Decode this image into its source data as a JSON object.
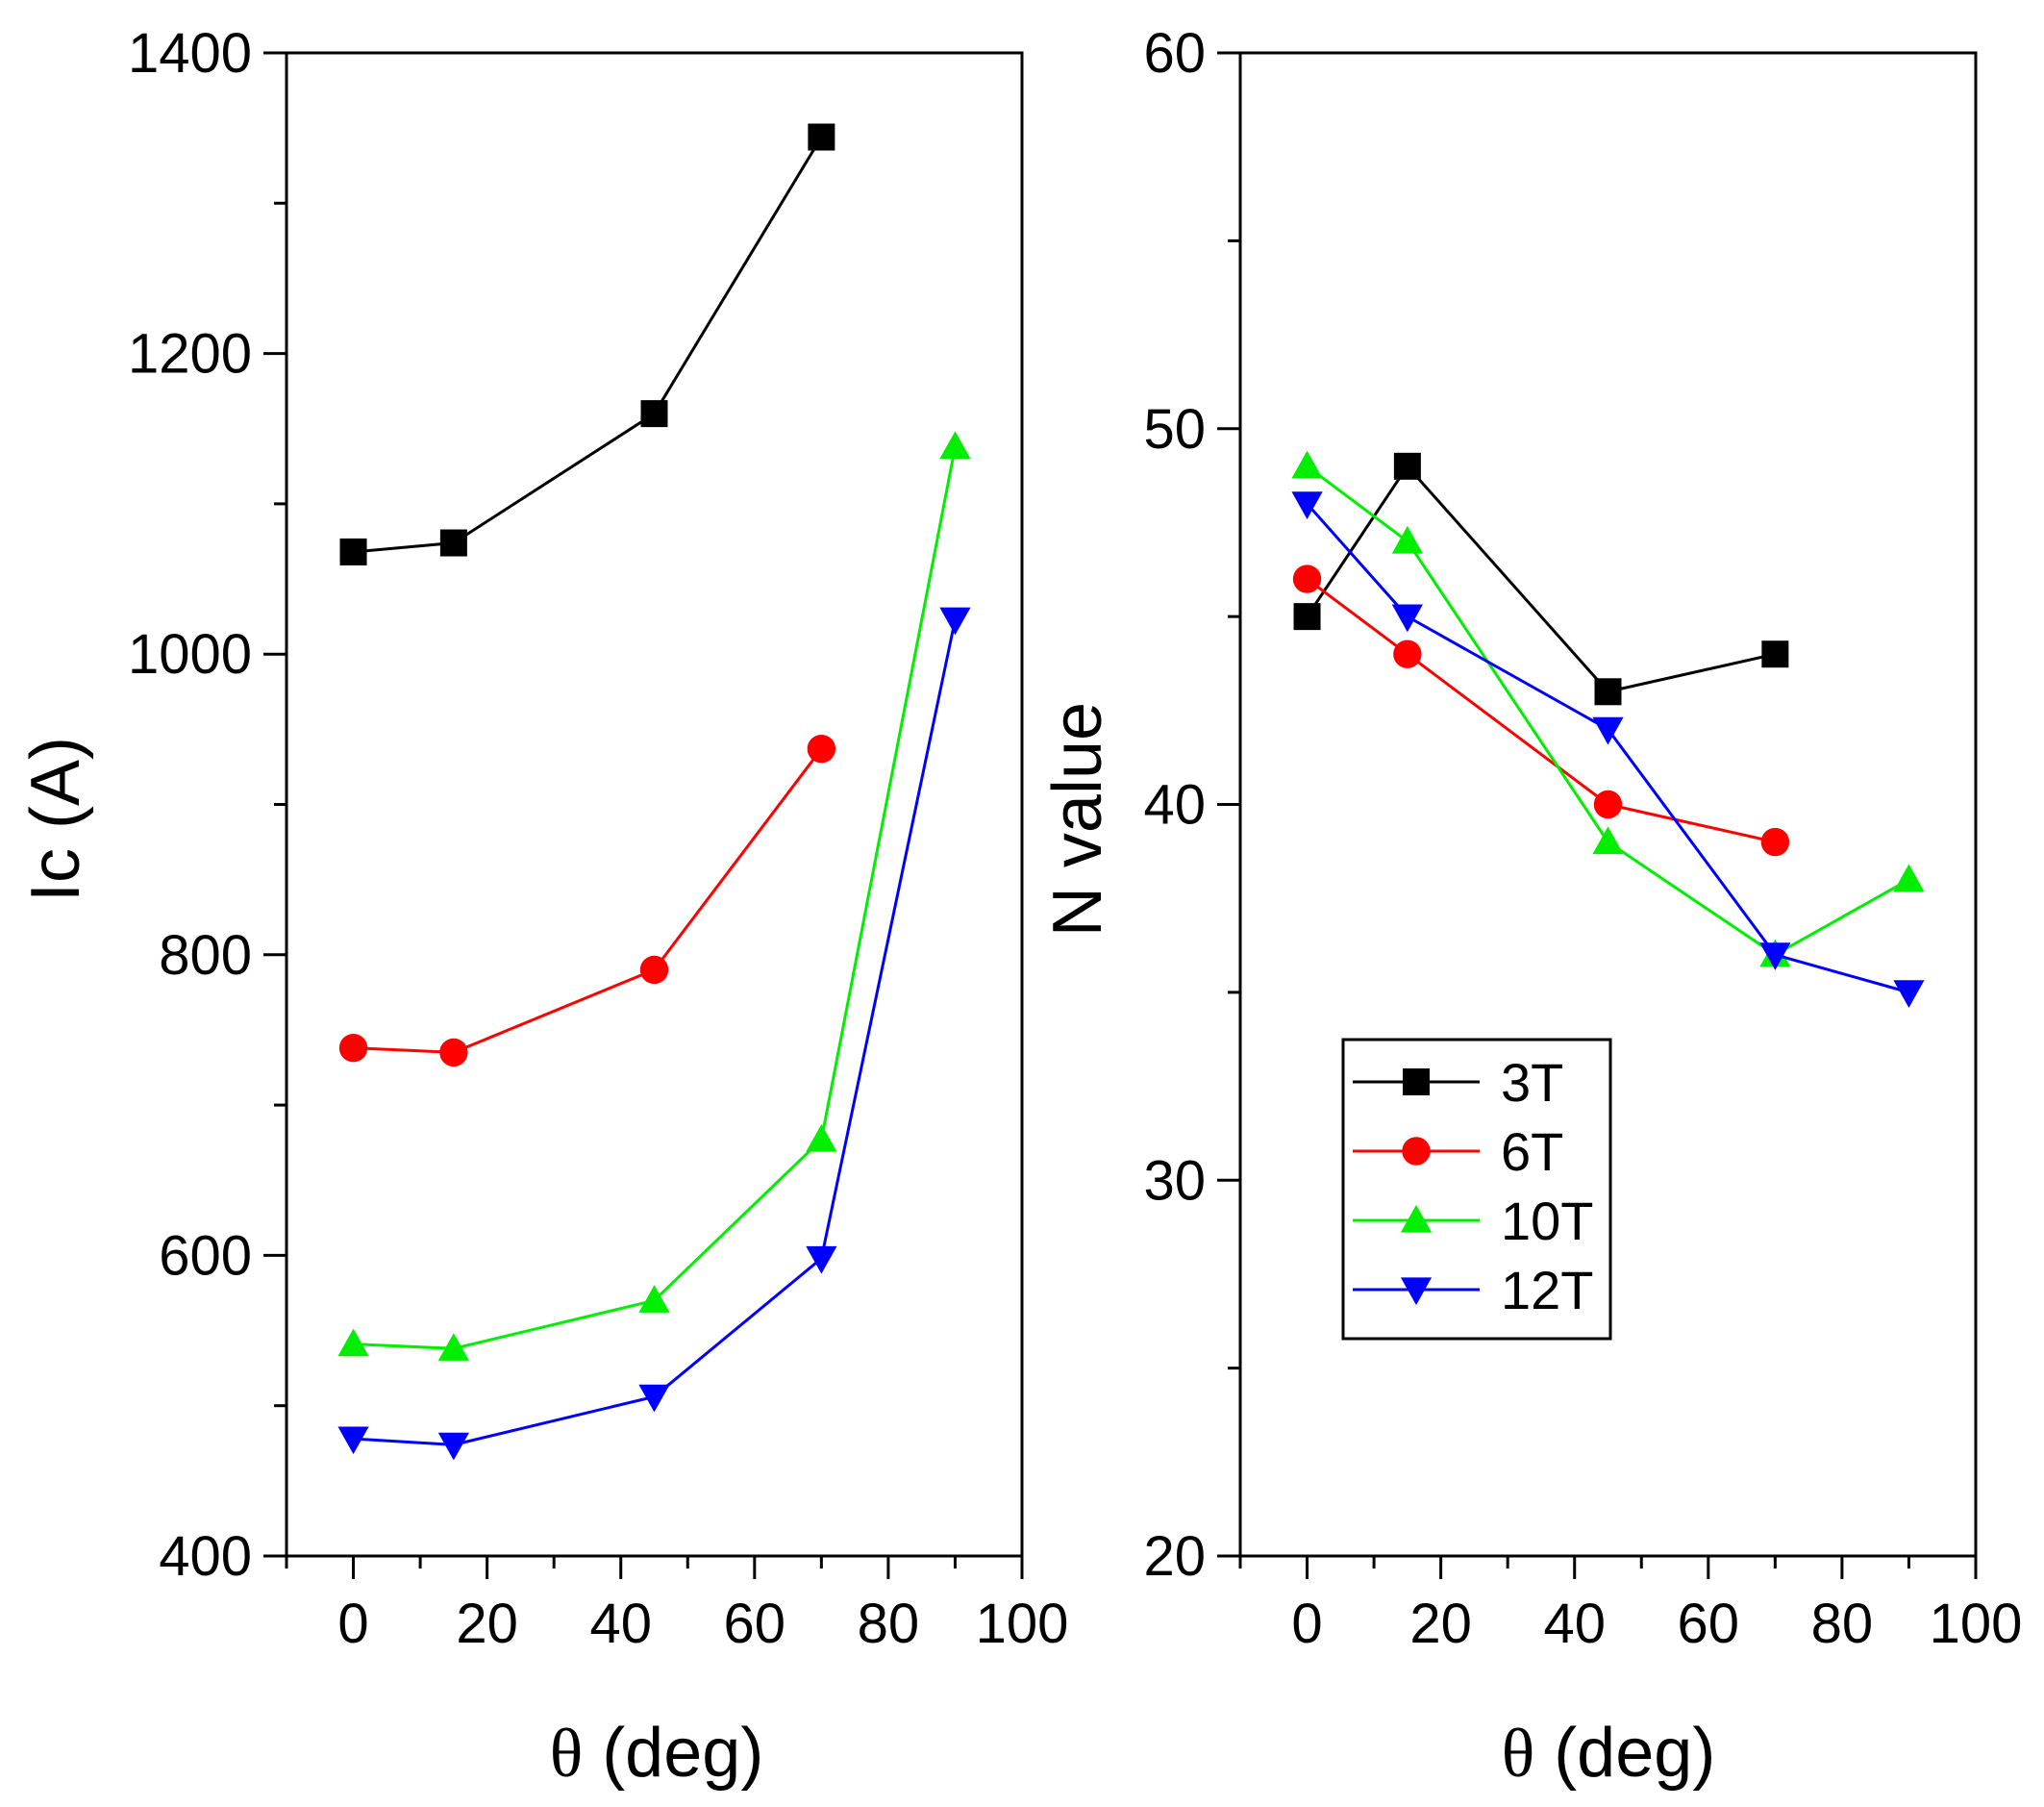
{
  "chart_data": [
    {
      "type": "line",
      "xlabel_symbol": "θ",
      "xlabel_rest": " (deg)",
      "ylabel": "Ic (A)",
      "xlim": [
        -10,
        100
      ],
      "ylim": [
        400,
        1400
      ],
      "xticks": [
        0,
        20,
        40,
        60,
        80,
        100
      ],
      "yticks": [
        400,
        600,
        800,
        1000,
        1200,
        1400
      ],
      "series": [
        {
          "name": "3T",
          "color": "#000000",
          "marker": "square",
          "x": [
            0,
            15,
            45,
            70
          ],
          "y": [
            1068,
            1074,
            1160,
            1344
          ]
        },
        {
          "name": "6T",
          "color": "#ff0000",
          "marker": "circle",
          "x": [
            0,
            15,
            45,
            70
          ],
          "y": [
            738,
            735,
            790,
            937
          ]
        },
        {
          "name": "10T",
          "color": "#00ee00",
          "marker": "triangle-up",
          "x": [
            0,
            15,
            45,
            70,
            90
          ],
          "y": [
            541,
            538,
            570,
            677,
            1138
          ]
        },
        {
          "name": "12T",
          "color": "#0000ff",
          "marker": "triangle-down",
          "x": [
            0,
            15,
            45,
            70,
            90
          ],
          "y": [
            478,
            474,
            506,
            598,
            1023
          ]
        }
      ]
    },
    {
      "type": "line",
      "xlabel_symbol": "θ",
      "xlabel_rest": " (deg)",
      "ylabel": "N value",
      "xlim": [
        -10,
        100
      ],
      "ylim": [
        20,
        60
      ],
      "xticks": [
        0,
        20,
        40,
        60,
        80,
        100
      ],
      "yticks": [
        20,
        30,
        40,
        50,
        60
      ],
      "legend_position": "lower-center",
      "series": [
        {
          "name": "3T",
          "color": "#000000",
          "marker": "square",
          "x": [
            0,
            15,
            45,
            70
          ],
          "y": [
            45,
            49,
            43,
            44
          ]
        },
        {
          "name": "6T",
          "color": "#ff0000",
          "marker": "circle",
          "x": [
            0,
            15,
            45,
            70
          ],
          "y": [
            46,
            44,
            40,
            39
          ]
        },
        {
          "name": "10T",
          "color": "#00ee00",
          "marker": "triangle-up",
          "x": [
            0,
            15,
            45,
            70,
            90
          ],
          "y": [
            49,
            47,
            39,
            36,
            38
          ]
        },
        {
          "name": "12T",
          "color": "#0000ff",
          "marker": "triangle-down",
          "x": [
            0,
            15,
            45,
            70,
            90
          ],
          "y": [
            48,
            45,
            42,
            36,
            35
          ]
        }
      ]
    }
  ]
}
